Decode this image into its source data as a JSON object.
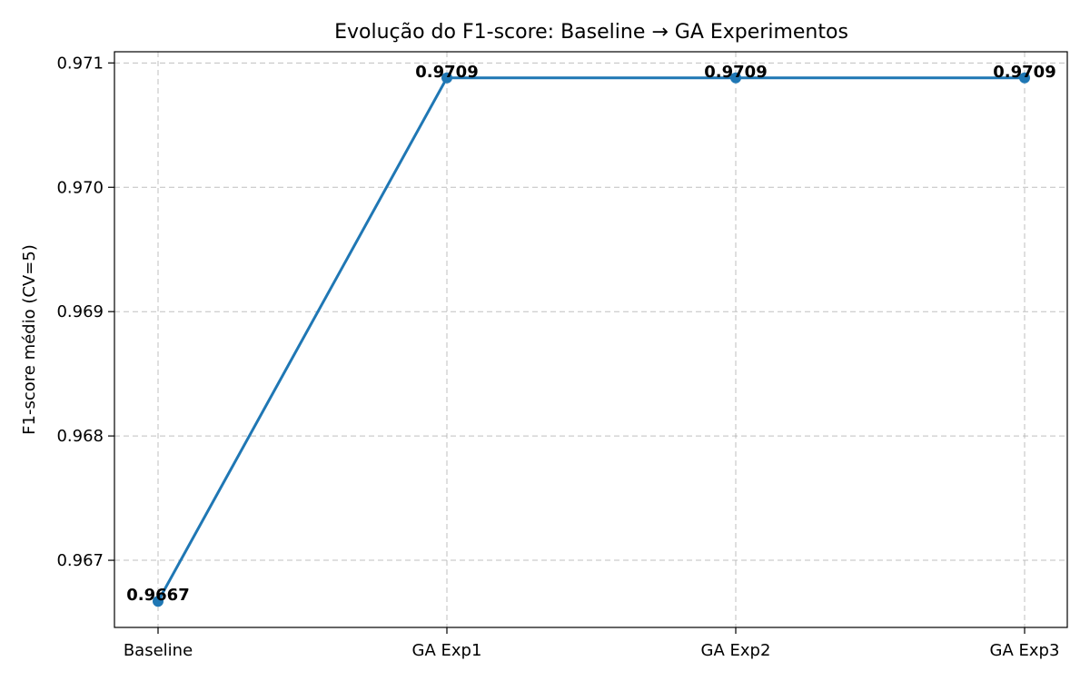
{
  "chart_data": {
    "type": "line",
    "title": "Evolução do F1-score: Baseline → GA Experimentos",
    "xlabel": "",
    "ylabel": "F1-score médio (CV=5)",
    "categories": [
      "Baseline",
      "GA Exp1",
      "GA Exp2",
      "GA Exp3"
    ],
    "series": [
      {
        "values": [
          0.96667,
          0.97088,
          0.97088,
          0.97088
        ],
        "data_labels": [
          "0.9667",
          "0.9709",
          "0.9709",
          "0.9709"
        ],
        "color": "#1f77b4"
      }
    ],
    "ylim": [
      0.96646,
      0.97109
    ],
    "yticks": [
      0.967,
      0.968,
      0.969,
      0.97,
      0.971
    ],
    "ytick_labels": [
      "0.967",
      "0.968",
      "0.969",
      "0.970",
      "0.971"
    ],
    "grid": true,
    "legend": "none"
  }
}
